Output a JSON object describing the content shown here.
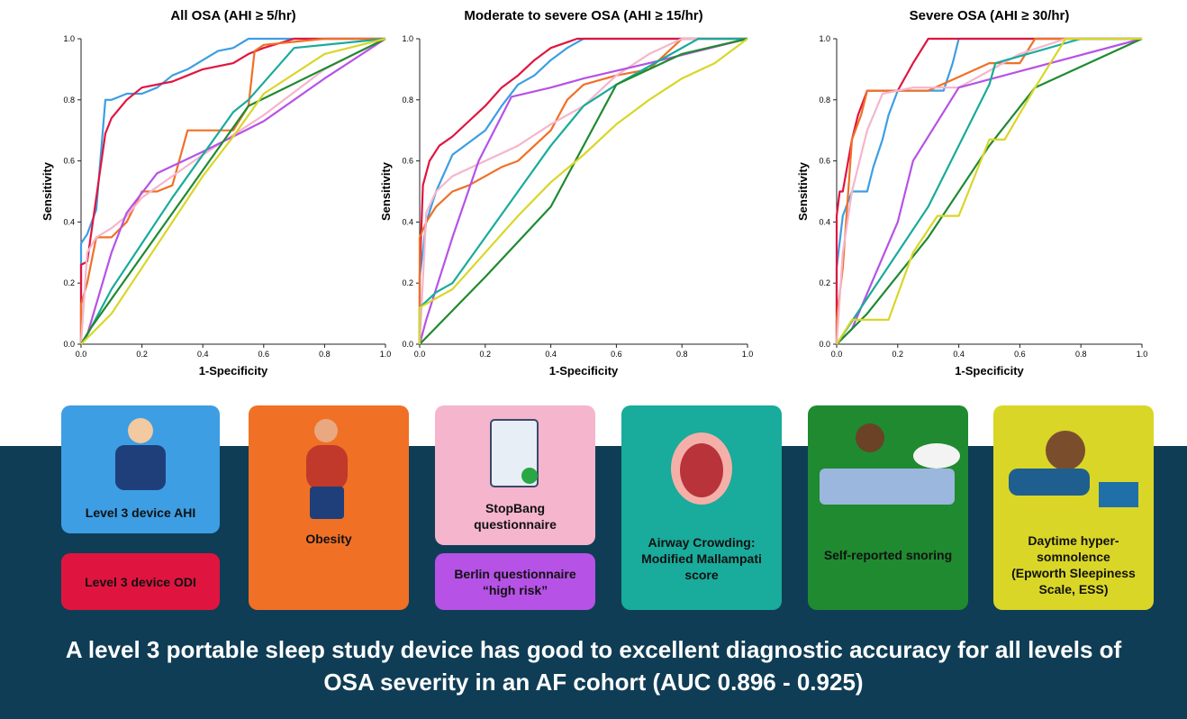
{
  "chart_data": [
    {
      "type": "line",
      "title": "All OSA (AHI ≥ 5/hr)",
      "xlabel": "1-Specificity",
      "ylabel": "Sensitivity",
      "xlim": [
        0,
        1
      ],
      "ylim": [
        0,
        1
      ],
      "xticks": [
        {
          "value": 0,
          "label": "0.0"
        },
        0.2,
        0.4,
        0.6,
        0.8,
        {
          "value": 1,
          "label": "1.0"
        }
      ],
      "yticks": [
        {
          "value": 0,
          "label": "0.0"
        },
        0.2,
        0.4,
        0.6,
        0.8,
        {
          "value": 1,
          "label": "1.0"
        }
      ],
      "series": [
        {
          "name": "Level 3 device AHI",
          "color": "#3d9ee3",
          "x": [
            0,
            0,
            0.02,
            0.05,
            0.08,
            0.1,
            0.15,
            0.2,
            0.25,
            0.3,
            0.35,
            0.4,
            0.45,
            0.5,
            0.55,
            1
          ],
          "values": [
            0,
            0.33,
            0.36,
            0.44,
            0.8,
            0.8,
            0.82,
            0.82,
            0.84,
            0.88,
            0.9,
            0.93,
            0.96,
            0.97,
            1,
            1
          ]
        },
        {
          "name": "Level 3 device ODI",
          "color": "#e0153f",
          "x": [
            0,
            0,
            0.02,
            0.08,
            0.1,
            0.15,
            0.2,
            0.3,
            0.35,
            0.4,
            0.5,
            0.55,
            0.6,
            0.7,
            1
          ],
          "values": [
            0,
            0.26,
            0.27,
            0.69,
            0.74,
            0.8,
            0.84,
            0.86,
            0.88,
            0.9,
            0.92,
            0.95,
            0.97,
            1,
            1
          ]
        },
        {
          "name": "Obesity",
          "color": "#f07026",
          "x": [
            0,
            0,
            0.02,
            0.05,
            0.1,
            0.15,
            0.2,
            0.25,
            0.3,
            0.35,
            0.4,
            0.5,
            0.55,
            0.57,
            0.6,
            0.8,
            1
          ],
          "values": [
            0,
            0.13,
            0.2,
            0.35,
            0.35,
            0.4,
            0.5,
            0.5,
            0.52,
            0.7,
            0.7,
            0.7,
            0.78,
            0.96,
            0.98,
            1,
            1
          ]
        },
        {
          "name": "StopBang questionnaire",
          "color": "#f5b5cd",
          "x": [
            0,
            0.02,
            0.05,
            0.1,
            0.15,
            0.2,
            0.3,
            0.4,
            0.6,
            0.8,
            1
          ],
          "values": [
            0,
            0.3,
            0.35,
            0.38,
            0.42,
            0.48,
            0.55,
            0.62,
            0.75,
            0.9,
            1
          ]
        },
        {
          "name": "Berlin questionnaire “high risk”",
          "color": "#b652e6",
          "x": [
            0,
            0.02,
            0.1,
            0.15,
            0.25,
            0.4,
            0.6,
            0.8,
            1
          ],
          "values": [
            0,
            0.03,
            0.3,
            0.43,
            0.56,
            0.63,
            0.73,
            0.87,
            1
          ]
        },
        {
          "name": "Airway Crowding: Modified Mallampati score",
          "color": "#19ab9b",
          "x": [
            0,
            0.02,
            0.1,
            0.2,
            0.3,
            0.5,
            0.55,
            0.7,
            1
          ],
          "values": [
            0,
            0.03,
            0.18,
            0.33,
            0.48,
            0.76,
            0.8,
            0.97,
            1
          ]
        },
        {
          "name": "Self-reported snoring",
          "color": "#1f8a30",
          "x": [
            0,
            0.03,
            0.55,
            1
          ],
          "values": [
            0,
            0.05,
            0.78,
            1
          ]
        },
        {
          "name": "Daytime hyper-somnolence (Epworth Sleepiness Scale, ESS)",
          "color": "#d9d628",
          "x": [
            0,
            0.05,
            0.1,
            0.2,
            0.3,
            0.4,
            0.5,
            0.6,
            0.8,
            1
          ],
          "values": [
            0,
            0.05,
            0.1,
            0.25,
            0.4,
            0.55,
            0.68,
            0.82,
            0.95,
            1
          ]
        }
      ]
    },
    {
      "type": "line",
      "title": "Moderate to severe OSA (AHI ≥ 15/hr)",
      "xlabel": "1-Specificity",
      "ylabel": "Sensitivity",
      "xlim": [
        0,
        1
      ],
      "ylim": [
        0,
        1
      ],
      "xticks": [
        {
          "value": 0,
          "label": "0.0"
        },
        0.2,
        0.4,
        0.6,
        0.8,
        {
          "value": 1,
          "label": "1.0"
        }
      ],
      "yticks": [
        {
          "value": 0,
          "label": "0.0"
        },
        0.2,
        0.4,
        0.6,
        0.8,
        {
          "value": 1,
          "label": "1.0"
        }
      ],
      "series": [
        {
          "color": "#3d9ee3",
          "x": [
            0,
            0,
            0.02,
            0.05,
            0.1,
            0.2,
            0.25,
            0.3,
            0.35,
            0.4,
            0.45,
            0.5,
            1
          ],
          "values": [
            0,
            0.22,
            0.4,
            0.5,
            0.62,
            0.7,
            0.78,
            0.85,
            0.88,
            0.93,
            0.97,
            1,
            1
          ]
        },
        {
          "color": "#e0153f",
          "x": [
            0,
            0,
            0.01,
            0.03,
            0.06,
            0.1,
            0.15,
            0.2,
            0.25,
            0.3,
            0.35,
            0.4,
            0.48,
            1
          ],
          "values": [
            0,
            0.23,
            0.52,
            0.6,
            0.65,
            0.68,
            0.73,
            0.78,
            0.84,
            0.88,
            0.93,
            0.97,
            1,
            1
          ]
        },
        {
          "color": "#f07026",
          "x": [
            0,
            0,
            0.02,
            0.05,
            0.1,
            0.15,
            0.25,
            0.3,
            0.4,
            0.45,
            0.5,
            0.6,
            0.7,
            0.8,
            1
          ],
          "values": [
            0,
            0.35,
            0.4,
            0.45,
            0.5,
            0.52,
            0.58,
            0.6,
            0.7,
            0.8,
            0.85,
            0.88,
            0.9,
            1,
            1
          ]
        },
        {
          "color": "#f5b5cd",
          "x": [
            0,
            0.02,
            0.05,
            0.1,
            0.2,
            0.3,
            0.4,
            0.5,
            0.6,
            0.7,
            0.8,
            1
          ],
          "values": [
            0,
            0.43,
            0.5,
            0.55,
            0.6,
            0.65,
            0.72,
            0.78,
            0.88,
            0.95,
            1,
            1
          ]
        },
        {
          "color": "#b652e6",
          "x": [
            0,
            0.02,
            0.1,
            0.18,
            0.28,
            0.4,
            0.5,
            0.7,
            1
          ],
          "values": [
            0,
            0.08,
            0.35,
            0.6,
            0.81,
            0.84,
            0.87,
            0.92,
            1
          ]
        },
        {
          "color": "#19ab9b",
          "x": [
            0,
            0,
            0.05,
            0.1,
            0.2,
            0.3,
            0.4,
            0.5,
            0.6,
            0.85,
            1
          ],
          "values": [
            0,
            0.12,
            0.17,
            0.2,
            0.35,
            0.5,
            0.65,
            0.78,
            0.85,
            1,
            1
          ]
        },
        {
          "color": "#1f8a30",
          "x": [
            0,
            0.2,
            0.4,
            0.6,
            0.8,
            1
          ],
          "values": [
            0,
            0.22,
            0.45,
            0.85,
            0.95,
            1
          ]
        },
        {
          "color": "#d9d628",
          "x": [
            0,
            0,
            0.05,
            0.1,
            0.2,
            0.3,
            0.4,
            0.5,
            0.6,
            0.7,
            0.8,
            0.9,
            1
          ],
          "values": [
            0,
            0.12,
            0.15,
            0.18,
            0.3,
            0.42,
            0.53,
            0.62,
            0.72,
            0.8,
            0.87,
            0.92,
            1
          ]
        }
      ]
    },
    {
      "type": "line",
      "title": "Severe OSA (AHI ≥ 30/hr)",
      "xlabel": "1-Specificity",
      "ylabel": "Sensitivity",
      "xlim": [
        0,
        1
      ],
      "ylim": [
        0,
        1
      ],
      "xticks": [
        {
          "value": 0,
          "label": "0.0"
        },
        0.2,
        0.4,
        0.6,
        0.8,
        {
          "value": 1,
          "label": "1.0"
        }
      ],
      "yticks": [
        {
          "value": 0,
          "label": "0.0"
        },
        0.2,
        0.4,
        0.6,
        0.8,
        {
          "value": 1,
          "label": "1.0"
        }
      ],
      "series": [
        {
          "color": "#3d9ee3",
          "x": [
            0,
            0,
            0.02,
            0.05,
            0.1,
            0.12,
            0.15,
            0.17,
            0.2,
            0.35,
            0.38,
            0.4,
            1
          ],
          "values": [
            0,
            0.25,
            0.42,
            0.5,
            0.5,
            0.58,
            0.67,
            0.75,
            0.83,
            0.83,
            0.92,
            1,
            1
          ]
        },
        {
          "color": "#e0153f",
          "x": [
            0,
            0,
            0.01,
            0.02,
            0.05,
            0.07,
            0.1,
            0.2,
            0.25,
            0.3,
            1
          ],
          "values": [
            0,
            0.42,
            0.5,
            0.5,
            0.67,
            0.75,
            0.83,
            0.83,
            0.92,
            1,
            1
          ]
        },
        {
          "color": "#f07026",
          "x": [
            0,
            0,
            0.02,
            0.05,
            0.08,
            0.1,
            0.3,
            0.5,
            0.6,
            0.65,
            1
          ],
          "values": [
            0,
            0.08,
            0.25,
            0.67,
            0.75,
            0.83,
            0.83,
            0.92,
            0.92,
            1,
            1
          ]
        },
        {
          "color": "#f5b5cd",
          "x": [
            0,
            0.02,
            0.05,
            0.1,
            0.15,
            0.25,
            0.4,
            0.6,
            0.75,
            1
          ],
          "values": [
            0,
            0.3,
            0.5,
            0.7,
            0.82,
            0.84,
            0.84,
            0.95,
            1,
            1
          ]
        },
        {
          "color": "#b652e6",
          "x": [
            0,
            0.05,
            0.2,
            0.25,
            0.4,
            0.7,
            1
          ],
          "values": [
            0,
            0.05,
            0.4,
            0.6,
            0.84,
            0.92,
            1
          ]
        },
        {
          "color": "#19ab9b",
          "x": [
            0,
            0.1,
            0.3,
            0.5,
            0.52,
            0.8,
            1
          ],
          "values": [
            0,
            0.15,
            0.45,
            0.85,
            0.92,
            1,
            1
          ]
        },
        {
          "color": "#1f8a30",
          "x": [
            0,
            0.1,
            0.3,
            0.5,
            0.65,
            1
          ],
          "values": [
            0,
            0.1,
            0.35,
            0.65,
            0.84,
            1
          ]
        },
        {
          "color": "#d9d628",
          "x": [
            0,
            0.05,
            0.1,
            0.17,
            0.25,
            0.33,
            0.4,
            0.5,
            0.55,
            0.65,
            0.75,
            1
          ],
          "values": [
            0,
            0.08,
            0.08,
            0.08,
            0.3,
            0.42,
            0.42,
            0.67,
            0.67,
            0.84,
            1,
            1
          ]
        }
      ]
    }
  ],
  "conclusion": "A level 3 portable sleep study device has good to excellent diagnostic accuracy for all levels of OSA severity in an AF cohort (AUC 0.896 - 0.925)"
}
